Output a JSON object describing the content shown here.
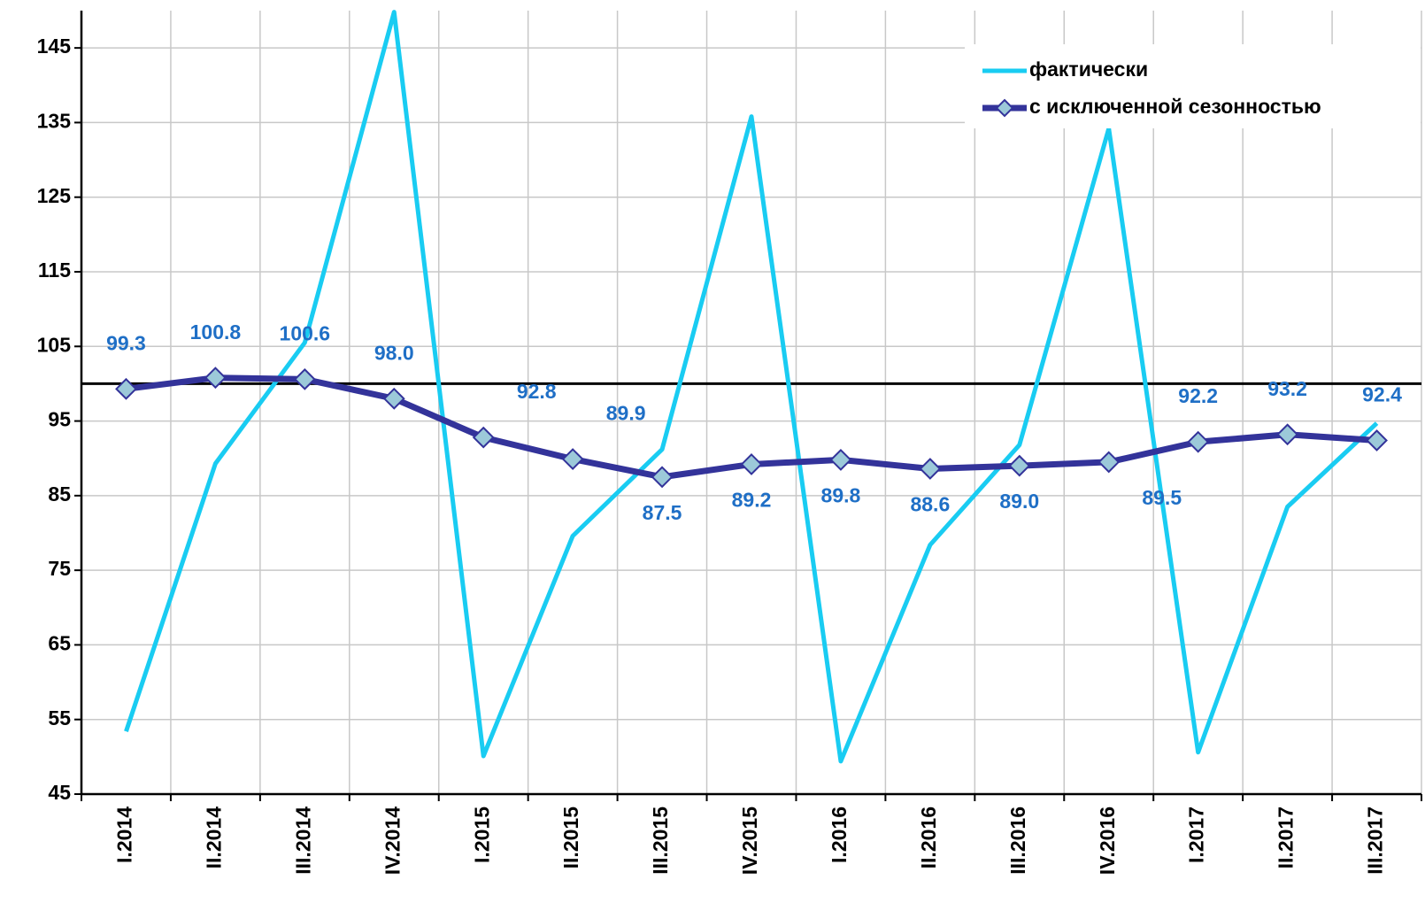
{
  "chart_data": {
    "type": "line",
    "categories": [
      "I.2014",
      "II.2014",
      "III.2014",
      "IV.2014",
      "I.2015",
      "II.2015",
      "III.2015",
      "IV.2015",
      "I.2016",
      "II.2016",
      "III.2016",
      "IV.2016",
      "I.2017",
      "II.2017",
      "III.2017"
    ],
    "series": [
      {
        "name": "фактически",
        "color": "#19ccf2",
        "values": [
          53.4,
          89.3,
          105.5,
          149.8,
          50.1,
          79.6,
          91.2,
          135.8,
          49.4,
          78.4,
          91.8,
          134.2,
          50.6,
          83.5,
          94.7
        ]
      },
      {
        "name": "с исключенной сезонностью",
        "color": "#33339a",
        "marker_color": "#9cc9d9",
        "values": [
          99.3,
          100.8,
          100.6,
          98.0,
          92.8,
          89.9,
          87.5,
          89.2,
          89.8,
          88.6,
          89.0,
          89.5,
          92.2,
          93.2,
          92.4
        ],
        "value_labels": [
          "99.3",
          "100.8",
          "100.6",
          "98.0",
          "92.8",
          "89.9",
          "87.5",
          "89.2",
          "89.8",
          "88.6",
          "89.0",
          "89.5",
          "92.2",
          "93.2",
          "92.4"
        ]
      }
    ],
    "reference_line": 100,
    "ylim": [
      45,
      150
    ],
    "yticks": [
      45,
      55,
      65,
      75,
      85,
      95,
      105,
      115,
      125,
      135,
      145
    ],
    "grid": true,
    "legend": "upper right"
  }
}
